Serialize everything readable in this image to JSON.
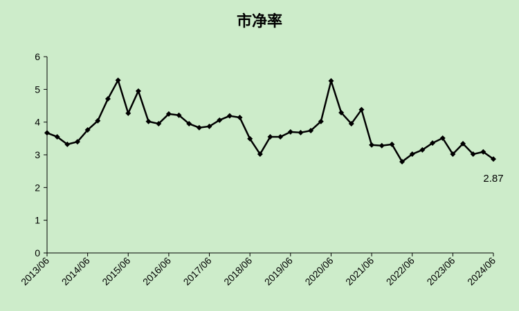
{
  "chart_data": {
    "type": "line",
    "title": "市净率",
    "categories": [
      "2013/06",
      null,
      null,
      null,
      "2014/06",
      null,
      null,
      null,
      "2015/06",
      null,
      null,
      null,
      "2016/06",
      null,
      null,
      null,
      "2017/06",
      null,
      null,
      null,
      "2018/06",
      null,
      null,
      null,
      "2019/06",
      null,
      null,
      null,
      "2020/06",
      null,
      null,
      null,
      "2021/06",
      null,
      null,
      null,
      "2022/06",
      null,
      null,
      null,
      "2023/06",
      null,
      null,
      null,
      "2024/06"
    ],
    "series": [
      {
        "color": "#000000",
        "values": [
          3.67,
          3.55,
          3.32,
          3.4,
          3.76,
          4.04,
          4.71,
          5.28,
          4.27,
          4.95,
          4.02,
          3.95,
          4.25,
          4.21,
          3.95,
          3.83,
          3.87,
          4.06,
          4.19,
          4.14,
          3.49,
          3.02,
          3.55,
          3.55,
          3.7,
          3.68,
          3.74,
          4.02,
          5.26,
          4.29,
          3.95,
          4.38,
          3.3,
          3.28,
          3.32,
          2.79,
          3.02,
          3.15,
          3.36,
          3.51,
          3.02,
          3.34,
          3.02,
          3.09,
          2.87
        ]
      }
    ],
    "ylim": [
      0,
      6
    ],
    "yticks": [
      0,
      1,
      2,
      3,
      4,
      5,
      6
    ],
    "grid": false,
    "labeled_point": 44
  }
}
